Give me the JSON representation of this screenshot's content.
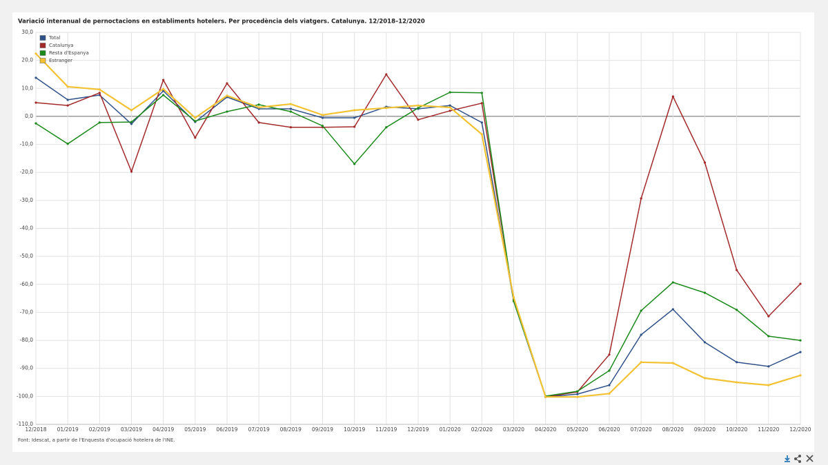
{
  "chart_data": {
    "type": "line",
    "title": "Variació interanual de pernoctacions en establiments hotelers. Per procedència dels viatgers. Catalunya. 12/2018–12/2020",
    "source": "Font: Idescat, a partir de l'Enquesta d'ocupació hotelera de l'INE.",
    "categories": [
      "12/2018",
      "01/2019",
      "02/2019",
      "03/2019",
      "04/2019",
      "05/2019",
      "06/2019",
      "07/2019",
      "08/2019",
      "09/2019",
      "10/2019",
      "11/2019",
      "12/2019",
      "01/2020",
      "02/2020",
      "03/2020",
      "04/2020",
      "05/2020",
      "06/2020",
      "07/2020",
      "08/2020",
      "09/2020",
      "10/2020",
      "11/2020",
      "12/2020"
    ],
    "series": [
      {
        "name": "Total",
        "color": "#2f5189",
        "values": [
          13.8,
          5.9,
          7.6,
          -2.7,
          9.1,
          -2.0,
          6.9,
          2.7,
          2.7,
          -0.5,
          -0.5,
          3.4,
          2.7,
          3.9,
          -2.2,
          -66,
          -100.2,
          -99.2,
          -96,
          -78,
          -68.9,
          -80.7,
          -87.8,
          -89.3,
          -84.2
        ]
      },
      {
        "name": "Catalunya",
        "color": "#a3282a",
        "values": [
          4.9,
          3.9,
          8.4,
          -19.7,
          13,
          -7.6,
          11.8,
          -2.2,
          -3.9,
          -3.9,
          -3.7,
          15,
          -1.2,
          2,
          4.7,
          -65.5,
          -100.2,
          -98.4,
          -85.1,
          -29.3,
          7.1,
          -16.5,
          -54.9,
          -71.4,
          -59.8
        ]
      },
      {
        "name": "Resta d'Espanya",
        "color": "#1b8a1b",
        "values": [
          -2.5,
          -9.8,
          -2.2,
          -2.0,
          7.6,
          -1.7,
          1.7,
          4.2,
          1.7,
          -3.4,
          -17,
          -3.9,
          3,
          8.6,
          8.4,
          -66,
          -99.9,
          -98.2,
          -90.8,
          -69.4,
          -59.3,
          -63,
          -69.1,
          -78.5,
          -80
        ]
      },
      {
        "name": "Estranger",
        "color": "#f2c232",
        "values": [
          22.4,
          10.6,
          9.6,
          2.2,
          9.8,
          -0.5,
          7.4,
          3.2,
          4.4,
          0.5,
          2.2,
          3,
          3.9,
          3.2,
          -6.4,
          -64.7,
          -100.2,
          -100.2,
          -99,
          -87.8,
          -88.1,
          -93.5,
          -95,
          -96,
          -92.5
        ]
      }
    ],
    "ylim": [
      -110,
      30
    ],
    "yticks": [
      {
        "value": 30,
        "label": "30,0"
      },
      {
        "value": 20,
        "label": "20,0"
      },
      {
        "value": 10,
        "label": "10,0"
      },
      {
        "value": 0,
        "label": "0,0"
      },
      {
        "value": -10,
        "label": "-10,0"
      },
      {
        "value": -20,
        "label": "-20,0"
      },
      {
        "value": -30,
        "label": "-30,0"
      },
      {
        "value": -40,
        "label": "-40,0"
      },
      {
        "value": -50,
        "label": "-50,0"
      },
      {
        "value": -60,
        "label": "-60,0"
      },
      {
        "value": -70,
        "label": "-70,0"
      },
      {
        "value": -80,
        "label": "-80,0"
      },
      {
        "value": -90,
        "label": "-90,0"
      },
      {
        "value": -100,
        "label": "-100,0"
      },
      {
        "value": -110,
        "label": "-110,0"
      }
    ],
    "grid": true,
    "legend": "upper left"
  }
}
